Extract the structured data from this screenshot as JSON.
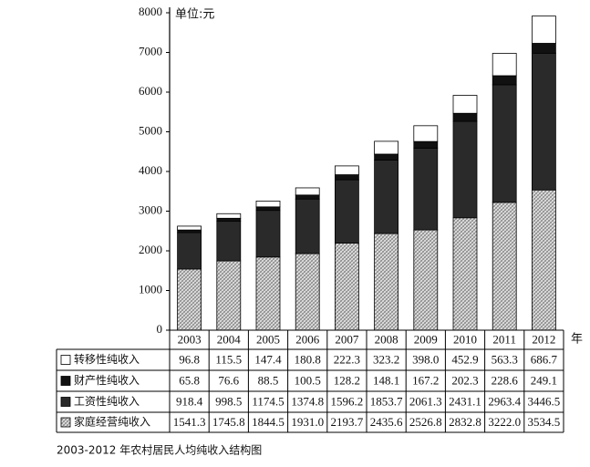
{
  "chart_data": {
    "type": "stacked_bar",
    "caption": "2003-2012 年农村居民人均纯收入结构图",
    "unit_label": "单位:元",
    "x_label": "年",
    "categories": [
      "2003",
      "2004",
      "2005",
      "2006",
      "2007",
      "2008",
      "2009",
      "2010",
      "2011",
      "2012"
    ],
    "series": [
      {
        "name": "转移性纯收入",
        "color": "#ffffff",
        "values": [
          96.8,
          115.5,
          147.4,
          180.8,
          222.3,
          323.2,
          398.0,
          452.9,
          563.3,
          686.7
        ],
        "value_labels": [
          "96.8",
          "115.5",
          "147.4",
          "180.8",
          "222.3",
          "323.2",
          "398.0",
          "452.9",
          "563.3",
          "686.7"
        ]
      },
      {
        "name": "财产性纯收入",
        "color": "#111111",
        "values": [
          65.8,
          76.6,
          88.5,
          100.5,
          128.2,
          148.1,
          167.2,
          202.3,
          228.6,
          249.1
        ]
      },
      {
        "name": "工资性纯收入",
        "color": "#2a2a2a",
        "values": [
          918.4,
          998.5,
          1174.5,
          1374.8,
          1596.2,
          1853.7,
          2061.3,
          2431.1,
          2963.4,
          3446.5
        ]
      },
      {
        "name": "家庭经营纯收入",
        "color": "#888888",
        "hatched": true,
        "values": [
          1541.3,
          1745.8,
          1844.5,
          1931.0,
          2193.7,
          2435.6,
          2526.8,
          2832.8,
          3222.0,
          3534.5
        ],
        "value_labels": [
          "1541.3",
          "1745.8",
          "1844.5",
          "1931.0",
          "2193.7",
          "2435.6",
          "2526.8",
          "2832.8",
          "3222.0",
          "3534.5"
        ]
      }
    ],
    "ylim": [
      0,
      8000
    ],
    "yticks": [
      0,
      1000,
      2000,
      3000,
      4000,
      5000,
      6000,
      7000,
      8000
    ],
    "grid": false
  }
}
